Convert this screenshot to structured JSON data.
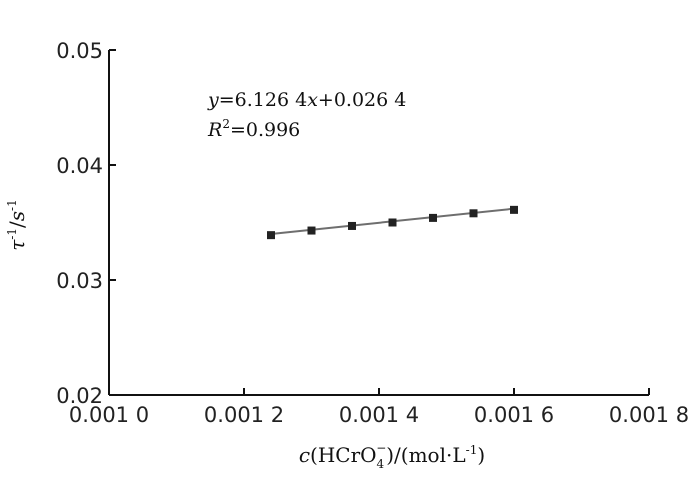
{
  "chart_data": {
    "type": "scatter",
    "x": [
      0.00124,
      0.0013,
      0.00136,
      0.00142,
      0.00148,
      0.00154,
      0.0016
    ],
    "y": [
      0.0339,
      0.0343,
      0.0347,
      0.035,
      0.0354,
      0.0358,
      0.0361
    ],
    "xlim": [
      0.001,
      0.0018
    ],
    "ylim": [
      0.02,
      0.05
    ],
    "x_ticks": [
      0.001,
      0.0012,
      0.0014,
      0.0016,
      0.0018
    ],
    "y_ticks": [
      0.02,
      0.03,
      0.04,
      0.05
    ],
    "x_tick_labels": [
      "0.001 0",
      "0.001 2",
      "0.001 4",
      "0.001 6",
      "0.001 8"
    ],
    "y_tick_labels": [
      "0.02",
      "0.03",
      "0.04",
      "0.05"
    ],
    "fit": {
      "slope": 6.1264,
      "intercept": 0.0264
    },
    "equation": {
      "y": "y",
      "eq": "=6.126 4",
      "x": "x",
      "rest": "+0.026 4"
    },
    "r2": {
      "r": "R",
      "sup": "2",
      "val": "=0.996"
    },
    "ylabel": {
      "sym": "τ",
      "exp1": "-1",
      "slash": "/",
      "unit": "s",
      "exp2": "-1"
    },
    "xlabel": {
      "c": "c",
      "open": "(HCrO",
      "sub": "4",
      "sup": "−",
      "close": ")/(mol·L",
      "exp": "-1",
      "end": ")"
    },
    "grid": false,
    "marker_color": "#222222",
    "line_color": "#6e6e6e"
  }
}
